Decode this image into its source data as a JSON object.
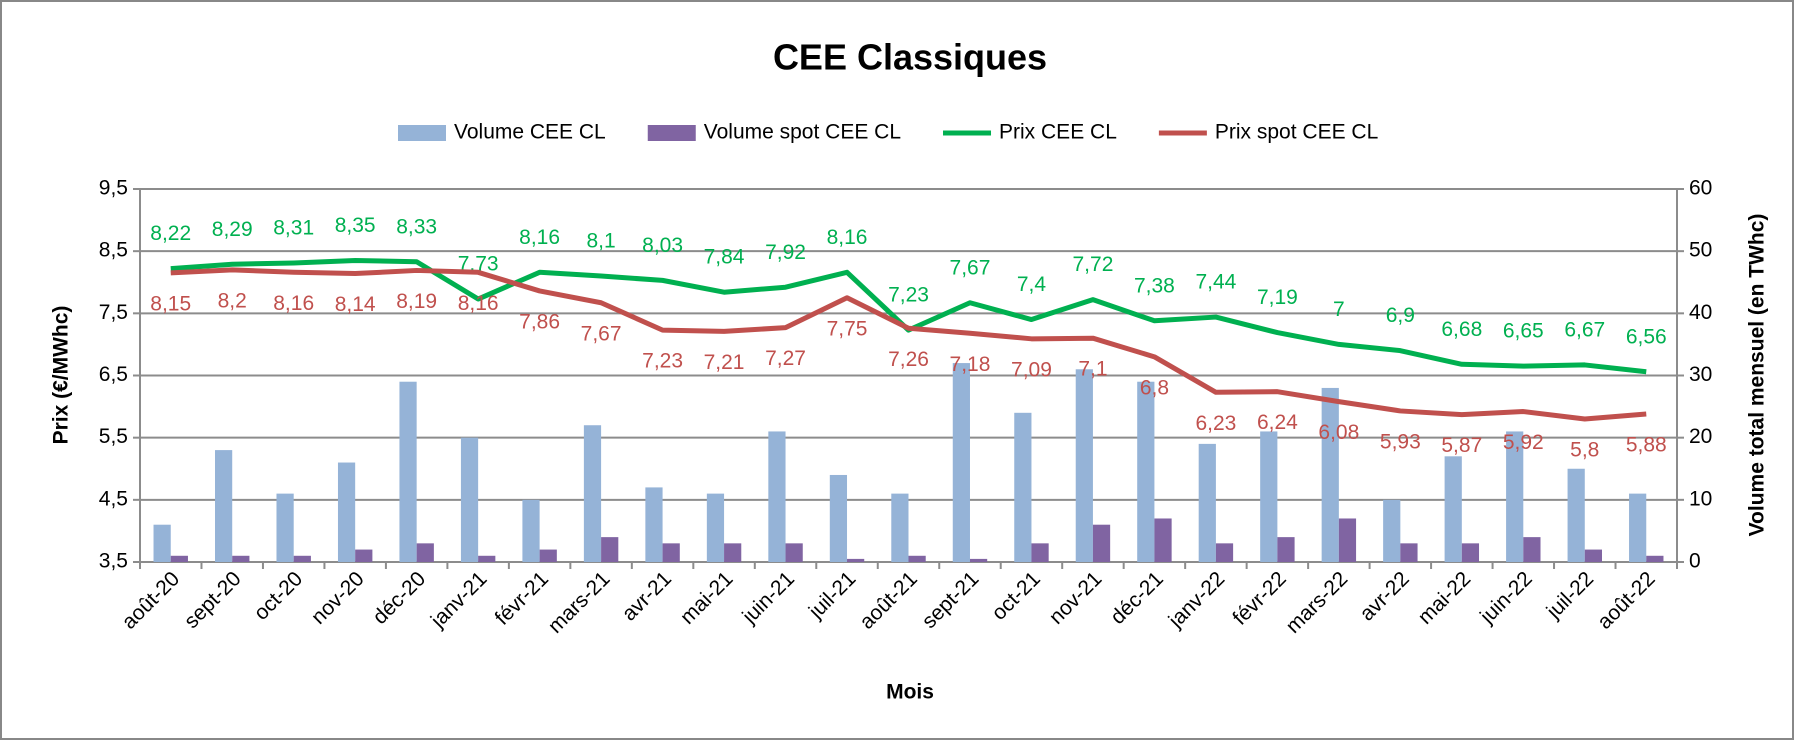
{
  "chart_data": {
    "type": "combo",
    "title": "CEE Classiques",
    "xlabel": "Mois",
    "ylabel": "Prix (€/MWhc)",
    "y2label": "Volume total mensuel (en TWhc)",
    "categories": [
      "août-20",
      "sept-20",
      "oct-20",
      "nov-20",
      "déc-20",
      "janv-21",
      "févr-21",
      "mars-21",
      "avr-21",
      "mai-21",
      "juin-21",
      "juil-21",
      "août-21",
      "sept-21",
      "oct-21",
      "nov-21",
      "déc-21",
      "janv-22",
      "févr-22",
      "mars-22",
      "avr-22",
      "mai-22",
      "juin-22",
      "juil-22",
      "août-22"
    ],
    "ylim": [
      3.5,
      9.5
    ],
    "yticks": [
      {
        "value": 3.5,
        "label": "3,5"
      },
      {
        "value": 4.5,
        "label": "4,5"
      },
      {
        "value": 5.5,
        "label": "5,5"
      },
      {
        "value": 6.5,
        "label": "6,5"
      },
      {
        "value": 7.5,
        "label": "7,5"
      },
      {
        "value": 8.5,
        "label": "8,5"
      },
      {
        "value": 9.5,
        "label": "9,5"
      }
    ],
    "y2lim": [
      0,
      60
    ],
    "y2ticks": [
      0,
      10,
      20,
      30,
      40,
      50,
      60
    ],
    "grid": true,
    "legend": "top",
    "series": [
      {
        "name": "Volume CEE CL",
        "type": "bar",
        "axis": "y2",
        "color": "#95b3d7",
        "values": [
          6,
          18,
          11,
          16,
          29,
          20,
          10,
          22,
          12,
          11,
          21,
          14,
          11,
          32,
          24,
          31,
          29,
          19,
          21,
          28,
          10,
          17,
          21,
          15,
          11
        ]
      },
      {
        "name": "Volume spot CEE CL",
        "type": "bar",
        "axis": "y2",
        "color": "#8064a2",
        "values": [
          1,
          1,
          1,
          2,
          3,
          1,
          2,
          4,
          3,
          3,
          3,
          0.5,
          1,
          0.5,
          3,
          6,
          7,
          3,
          4,
          7,
          3,
          3,
          4,
          2,
          1
        ]
      },
      {
        "name": "Prix CEE CL",
        "type": "line",
        "color": "#00b050",
        "values": [
          8.22,
          8.29,
          8.31,
          8.35,
          8.33,
          7.73,
          8.16,
          8.1,
          8.03,
          7.84,
          7.92,
          8.16,
          7.23,
          7.67,
          7.4,
          7.72,
          7.38,
          7.44,
          7.19,
          7,
          6.9,
          6.68,
          6.65,
          6.67,
          6.56
        ],
        "value_labels": [
          "8,22",
          "8,29",
          "8,31",
          "8,35",
          "8,33",
          "7,73",
          "8,16",
          "8,1",
          "8,03",
          "7,84",
          "7,92",
          "8,16",
          "7,23",
          "7,67",
          "7,4",
          "7,72",
          "7,38",
          "7,44",
          "7,19",
          "7",
          "6,9",
          "6,68",
          "6,65",
          "6,67",
          "6,56"
        ]
      },
      {
        "name": "Prix spot CEE CL",
        "type": "line",
        "color": "#c0504d",
        "values": [
          8.15,
          8.2,
          8.16,
          8.14,
          8.19,
          8.16,
          7.86,
          7.67,
          7.23,
          7.21,
          7.27,
          7.75,
          7.26,
          7.18,
          7.09,
          7.1,
          6.8,
          6.23,
          6.24,
          6.08,
          5.93,
          5.87,
          5.92,
          5.8,
          5.88
        ],
        "value_labels": [
          "8,15",
          "8,2",
          "8,16",
          "8,14",
          "8,19",
          "8,16",
          "7,86",
          "7,67",
          "7,23",
          "7,21",
          "7,27",
          "7,75",
          "7,26",
          "7,18",
          "7,09",
          "7,1",
          "6,8",
          "6,23",
          "6,24",
          "6,08",
          "5,93",
          "5,87",
          "5,92",
          "5,8",
          "5,88"
        ]
      }
    ]
  }
}
